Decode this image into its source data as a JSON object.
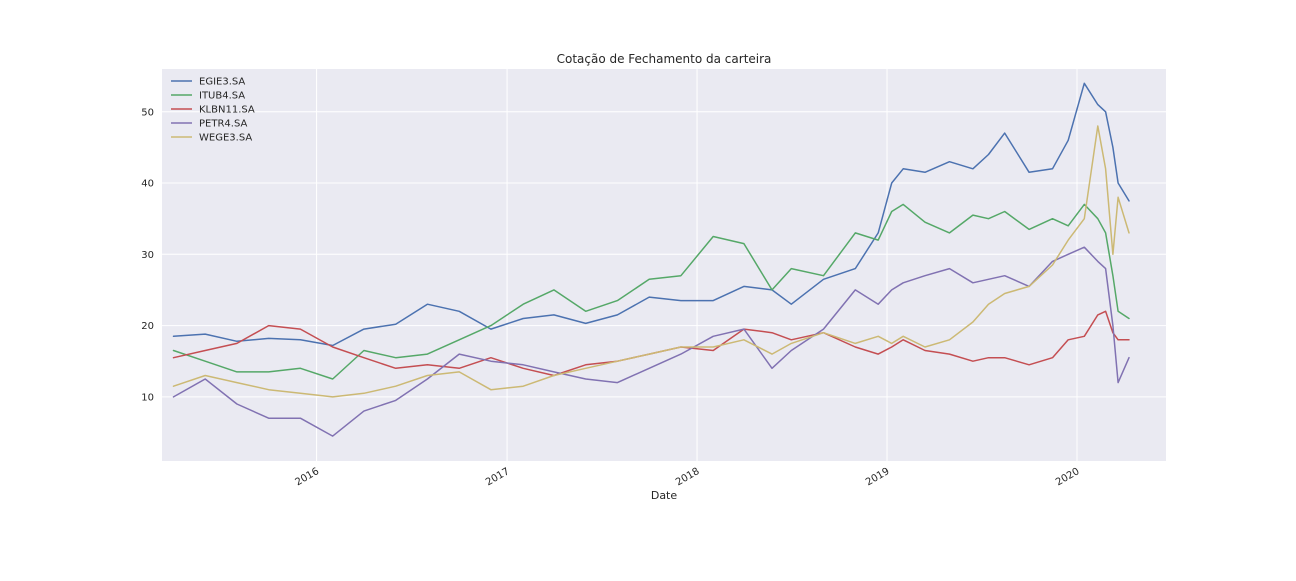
{
  "chart_data": {
    "type": "line",
    "title": "Cotação de Fechamento da carteira",
    "xlabel": "Date",
    "ylabel": "",
    "xlim": [
      "2015-03-10",
      "2020-06-20"
    ],
    "ylim": [
      1,
      56
    ],
    "x_ticks": [
      {
        "date": "2016-01-01",
        "label": "2016"
      },
      {
        "date": "2017-01-01",
        "label": "2017"
      },
      {
        "date": "2018-01-01",
        "label": "2018"
      },
      {
        "date": "2019-01-01",
        "label": "2019"
      },
      {
        "date": "2020-01-01",
        "label": "2020"
      }
    ],
    "y_ticks": [
      10,
      20,
      30,
      40,
      50
    ],
    "grid": true,
    "legend_position": "top-left",
    "colors": {
      "background": "#eaeaf2",
      "grid": "#ffffff",
      "EGIE3.SA": "#4c72b0",
      "ITUB4.SA": "#55a868",
      "KLBN11.SA": "#c44e52",
      "PETR4.SA": "#8172b2",
      "WEGE3.SA": "#ccb974"
    },
    "series": [
      {
        "name": "EGIE3.SA",
        "x": [
          "2015-04-01",
          "2015-06-01",
          "2015-08-01",
          "2015-10-01",
          "2015-12-01",
          "2016-02-01",
          "2016-04-01",
          "2016-06-01",
          "2016-08-01",
          "2016-10-01",
          "2016-12-01",
          "2017-02-01",
          "2017-04-01",
          "2017-06-01",
          "2017-08-01",
          "2017-10-01",
          "2017-12-01",
          "2018-02-01",
          "2018-04-01",
          "2018-05-25",
          "2018-07-01",
          "2018-09-01",
          "2018-11-01",
          "2018-12-15",
          "2019-01-10",
          "2019-02-01",
          "2019-03-15",
          "2019-05-01",
          "2019-06-15",
          "2019-07-15",
          "2019-08-15",
          "2019-10-01",
          "2019-11-15",
          "2019-12-15",
          "2020-01-15",
          "2020-02-10",
          "2020-02-25",
          "2020-03-10",
          "2020-03-20",
          "2020-04-10"
        ],
        "y": [
          18.5,
          18.8,
          17.8,
          18.2,
          18.0,
          17.2,
          19.5,
          20.2,
          23.0,
          22.0,
          19.5,
          21.0,
          21.5,
          20.3,
          21.5,
          24.0,
          23.5,
          23.5,
          25.5,
          25.0,
          23.0,
          26.5,
          28.0,
          33.0,
          40.0,
          42.0,
          41.5,
          43.0,
          42.0,
          44.0,
          47.0,
          41.5,
          42.0,
          46.0,
          54.0,
          51.0,
          50.0,
          45.0,
          40.0,
          37.5
        ]
      },
      {
        "name": "ITUB4.SA",
        "x": [
          "2015-04-01",
          "2015-06-01",
          "2015-08-01",
          "2015-10-01",
          "2015-12-01",
          "2016-02-01",
          "2016-04-01",
          "2016-06-01",
          "2016-08-01",
          "2016-10-01",
          "2016-12-01",
          "2017-02-01",
          "2017-04-01",
          "2017-06-01",
          "2017-08-01",
          "2017-10-01",
          "2017-12-01",
          "2018-02-01",
          "2018-04-01",
          "2018-05-25",
          "2018-07-01",
          "2018-09-01",
          "2018-11-01",
          "2018-12-15",
          "2019-01-10",
          "2019-02-01",
          "2019-03-15",
          "2019-05-01",
          "2019-06-15",
          "2019-07-15",
          "2019-08-15",
          "2019-10-01",
          "2019-11-15",
          "2019-12-15",
          "2020-01-15",
          "2020-02-10",
          "2020-02-25",
          "2020-03-10",
          "2020-03-20",
          "2020-04-10"
        ],
        "y": [
          16.5,
          15.0,
          13.5,
          13.5,
          14.0,
          12.5,
          16.5,
          15.5,
          16.0,
          18.0,
          20.0,
          23.0,
          25.0,
          22.0,
          23.5,
          26.5,
          27.0,
          32.5,
          31.5,
          25.0,
          28.0,
          27.0,
          33.0,
          32.0,
          36.0,
          37.0,
          34.5,
          33.0,
          35.5,
          35.0,
          36.0,
          33.5,
          35.0,
          34.0,
          37.0,
          35.0,
          33.0,
          27.0,
          22.0,
          21.0
        ]
      },
      {
        "name": "KLBN11.SA",
        "x": [
          "2015-04-01",
          "2015-06-01",
          "2015-08-01",
          "2015-10-01",
          "2015-12-01",
          "2016-02-01",
          "2016-04-01",
          "2016-06-01",
          "2016-08-01",
          "2016-10-01",
          "2016-12-01",
          "2017-02-01",
          "2017-04-01",
          "2017-06-01",
          "2017-08-01",
          "2017-10-01",
          "2017-12-01",
          "2018-02-01",
          "2018-04-01",
          "2018-05-25",
          "2018-07-01",
          "2018-09-01",
          "2018-11-01",
          "2018-12-15",
          "2019-01-10",
          "2019-02-01",
          "2019-03-15",
          "2019-05-01",
          "2019-06-15",
          "2019-07-15",
          "2019-08-15",
          "2019-10-01",
          "2019-11-15",
          "2019-12-15",
          "2020-01-15",
          "2020-02-10",
          "2020-02-25",
          "2020-03-10",
          "2020-03-20",
          "2020-04-10"
        ],
        "y": [
          15.5,
          16.5,
          17.5,
          20.0,
          19.5,
          17.0,
          15.5,
          14.0,
          14.5,
          14.0,
          15.5,
          14.0,
          13.0,
          14.5,
          15.0,
          16.0,
          17.0,
          16.5,
          19.5,
          19.0,
          18.0,
          19.0,
          17.0,
          16.0,
          17.0,
          18.0,
          16.5,
          16.0,
          15.0,
          15.5,
          15.5,
          14.5,
          15.5,
          18.0,
          18.5,
          21.5,
          22.0,
          19.0,
          18.0,
          18.0
        ]
      },
      {
        "name": "PETR4.SA",
        "x": [
          "2015-04-01",
          "2015-06-01",
          "2015-08-01",
          "2015-10-01",
          "2015-12-01",
          "2016-02-01",
          "2016-04-01",
          "2016-06-01",
          "2016-08-01",
          "2016-10-01",
          "2016-12-01",
          "2017-02-01",
          "2017-04-01",
          "2017-06-01",
          "2017-08-01",
          "2017-10-01",
          "2017-12-01",
          "2018-02-01",
          "2018-04-01",
          "2018-05-25",
          "2018-07-01",
          "2018-09-01",
          "2018-11-01",
          "2018-12-15",
          "2019-01-10",
          "2019-02-01",
          "2019-03-15",
          "2019-05-01",
          "2019-06-15",
          "2019-07-15",
          "2019-08-15",
          "2019-10-01",
          "2019-11-15",
          "2019-12-15",
          "2020-01-15",
          "2020-02-10",
          "2020-02-25",
          "2020-03-10",
          "2020-03-20",
          "2020-04-10"
        ],
        "y": [
          10.0,
          12.5,
          9.0,
          7.0,
          7.0,
          4.5,
          8.0,
          9.5,
          12.5,
          16.0,
          15.0,
          14.5,
          13.5,
          12.5,
          12.0,
          14.0,
          16.0,
          18.5,
          19.5,
          14.0,
          16.5,
          19.5,
          25.0,
          23.0,
          25.0,
          26.0,
          27.0,
          28.0,
          26.0,
          26.5,
          27.0,
          25.5,
          29.0,
          30.0,
          31.0,
          29.0,
          28.0,
          20.0,
          12.0,
          15.5
        ]
      },
      {
        "name": "WEGE3.SA",
        "x": [
          "2015-04-01",
          "2015-06-01",
          "2015-08-01",
          "2015-10-01",
          "2015-12-01",
          "2016-02-01",
          "2016-04-01",
          "2016-06-01",
          "2016-08-01",
          "2016-10-01",
          "2016-12-01",
          "2017-02-01",
          "2017-04-01",
          "2017-06-01",
          "2017-08-01",
          "2017-10-01",
          "2017-12-01",
          "2018-02-01",
          "2018-04-01",
          "2018-05-25",
          "2018-07-01",
          "2018-09-01",
          "2018-11-01",
          "2018-12-15",
          "2019-01-10",
          "2019-02-01",
          "2019-03-15",
          "2019-05-01",
          "2019-06-15",
          "2019-07-15",
          "2019-08-15",
          "2019-10-01",
          "2019-11-15",
          "2019-12-15",
          "2020-01-15",
          "2020-02-10",
          "2020-02-25",
          "2020-03-10",
          "2020-03-20",
          "2020-04-10"
        ],
        "y": [
          11.5,
          13.0,
          12.0,
          11.0,
          10.5,
          10.0,
          10.5,
          11.5,
          13.0,
          13.5,
          11.0,
          11.5,
          13.0,
          14.0,
          15.0,
          16.0,
          17.0,
          17.0,
          18.0,
          16.0,
          17.5,
          19.0,
          17.5,
          18.5,
          17.5,
          18.5,
          17.0,
          18.0,
          20.5,
          23.0,
          24.5,
          25.5,
          28.5,
          32.0,
          35.0,
          48.0,
          42.0,
          30.0,
          38.0,
          33.0
        ]
      }
    ]
  }
}
